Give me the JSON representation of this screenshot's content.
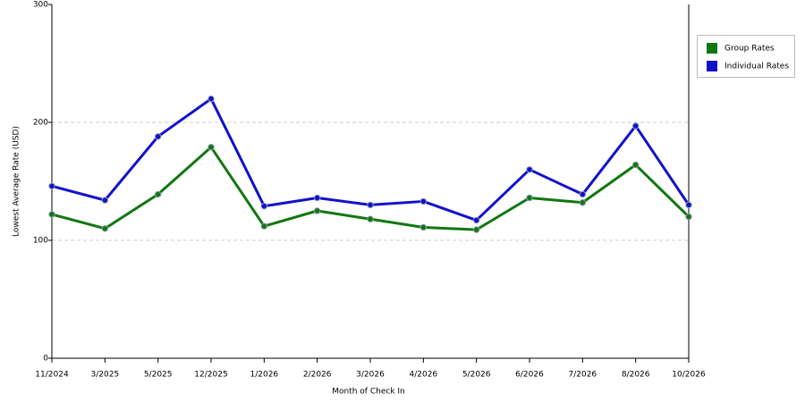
{
  "chart_data": {
    "type": "line",
    "x_label": "Month of Check In",
    "y_label": "Lowest Average Rate (USD)",
    "categories": [
      "11/2024",
      "3/2025",
      "5/2025",
      "12/2025",
      "1/2026",
      "2/2026",
      "3/2026",
      "4/2026",
      "5/2026",
      "6/2026",
      "7/2026",
      "8/2026",
      "10/2026"
    ],
    "series": [
      {
        "name": "Group Rates",
        "color": "#117711",
        "values": [
          122,
          110,
          139,
          179,
          112,
          125,
          118,
          111,
          109,
          136,
          132,
          164,
          120
        ]
      },
      {
        "name": "Individual Rates",
        "color": "#1111cc",
        "values": [
          146,
          134,
          188,
          220,
          129,
          136,
          130,
          133,
          117,
          160,
          139,
          197,
          130
        ]
      }
    ],
    "ylim": [
      0,
      300
    ],
    "yticks": [
      0,
      100,
      200,
      300
    ],
    "grid": true,
    "legend": "right"
  }
}
